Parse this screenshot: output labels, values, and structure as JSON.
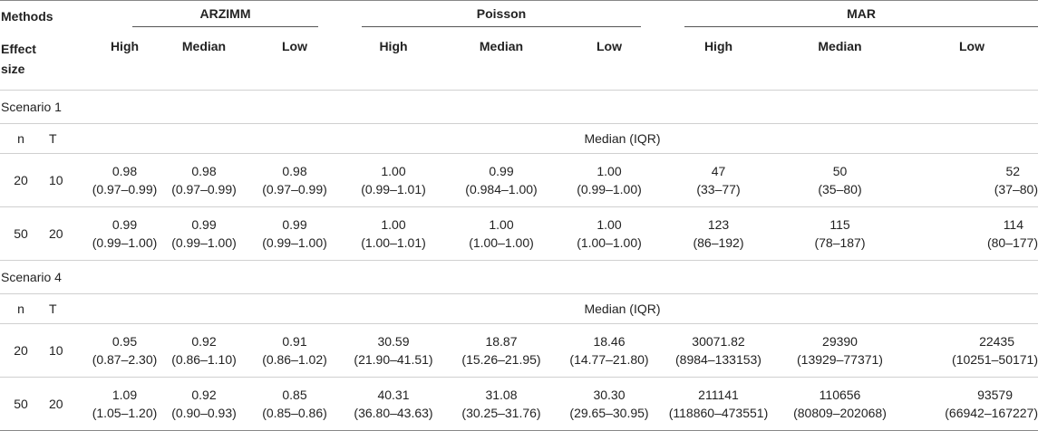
{
  "headers": {
    "methods": "Methods",
    "effect_size": [
      "Effect",
      "size"
    ],
    "groups": [
      "ARZIMM",
      "Poisson",
      "MAR"
    ],
    "levels": [
      "High",
      "Median",
      "Low",
      "High",
      "Median",
      "Low",
      "High",
      "Median",
      "Low"
    ]
  },
  "sections": [
    {
      "title": "Scenario 1",
      "n_label": "n",
      "t_label": "T",
      "stat_label": "Median (IQR)",
      "rows": [
        {
          "n": "20",
          "t": "10",
          "cells": [
            {
              "v": "0.98",
              "r": "(0.97–0.99)"
            },
            {
              "v": "0.98",
              "r": "(0.97–0.99)"
            },
            {
              "v": "0.98",
              "r": "(0.97–0.99)"
            },
            {
              "v": "1.00",
              "r": "(0.99–1.01)"
            },
            {
              "v": "0.99",
              "r": "(0.984–1.00)"
            },
            {
              "v": "1.00",
              "r": "(0.99–1.00)"
            },
            {
              "v": "47",
              "r": "(33–77)"
            },
            {
              "v": "50",
              "r": "(35–80)"
            },
            {
              "v": "52",
              "r": "(37–80)"
            }
          ]
        },
        {
          "n": "50",
          "t": "20",
          "cells": [
            {
              "v": "0.99",
              "r": "(0.99–1.00)"
            },
            {
              "v": "0.99",
              "r": "(0.99–1.00)"
            },
            {
              "v": "0.99",
              "r": "(0.99–1.00)"
            },
            {
              "v": "1.00",
              "r": "(1.00–1.01)"
            },
            {
              "v": "1.00",
              "r": "(1.00–1.00)"
            },
            {
              "v": "1.00",
              "r": "(1.00–1.00)"
            },
            {
              "v": "123",
              "r": "(86–192)"
            },
            {
              "v": "115",
              "r": "(78–187)"
            },
            {
              "v": "114",
              "r": "(80–177)"
            }
          ]
        }
      ]
    },
    {
      "title": "Scenario 4",
      "n_label": "n",
      "t_label": "T",
      "stat_label": "Median (IQR)",
      "rows": [
        {
          "n": "20",
          "t": "10",
          "cells": [
            {
              "v": "0.95",
              "r": "(0.87–2.30)"
            },
            {
              "v": "0.92",
              "r": "(0.86–1.10)"
            },
            {
              "v": "0.91",
              "r": "(0.86–1.02)"
            },
            {
              "v": "30.59",
              "r": "(21.90–41.51)"
            },
            {
              "v": "18.87",
              "r": "(15.26–21.95)"
            },
            {
              "v": "18.46",
              "r": "(14.77–21.80)"
            },
            {
              "v": "30071.82",
              "r": "(8984–133153)"
            },
            {
              "v": "29390",
              "r": "(13929–77371)"
            },
            {
              "v": "22435",
              "r": "(10251–50171)"
            }
          ]
        },
        {
          "n": "50",
          "t": "20",
          "cells": [
            {
              "v": "1.09",
              "r": "(1.05–1.20)"
            },
            {
              "v": "0.92",
              "r": "(0.90–0.93)"
            },
            {
              "v": "0.85",
              "r": "(0.85–0.86)"
            },
            {
              "v": "40.31",
              "r": "(36.80–43.63)"
            },
            {
              "v": "31.08",
              "r": "(30.25–31.76)"
            },
            {
              "v": "30.30",
              "r": "(29.65–30.95)"
            },
            {
              "v": "211141",
              "r": "(118860–473551)"
            },
            {
              "v": "110656",
              "r": "(80809–202068)"
            },
            {
              "v": "93579",
              "r": "(66942–167227)"
            }
          ]
        }
      ]
    }
  ]
}
